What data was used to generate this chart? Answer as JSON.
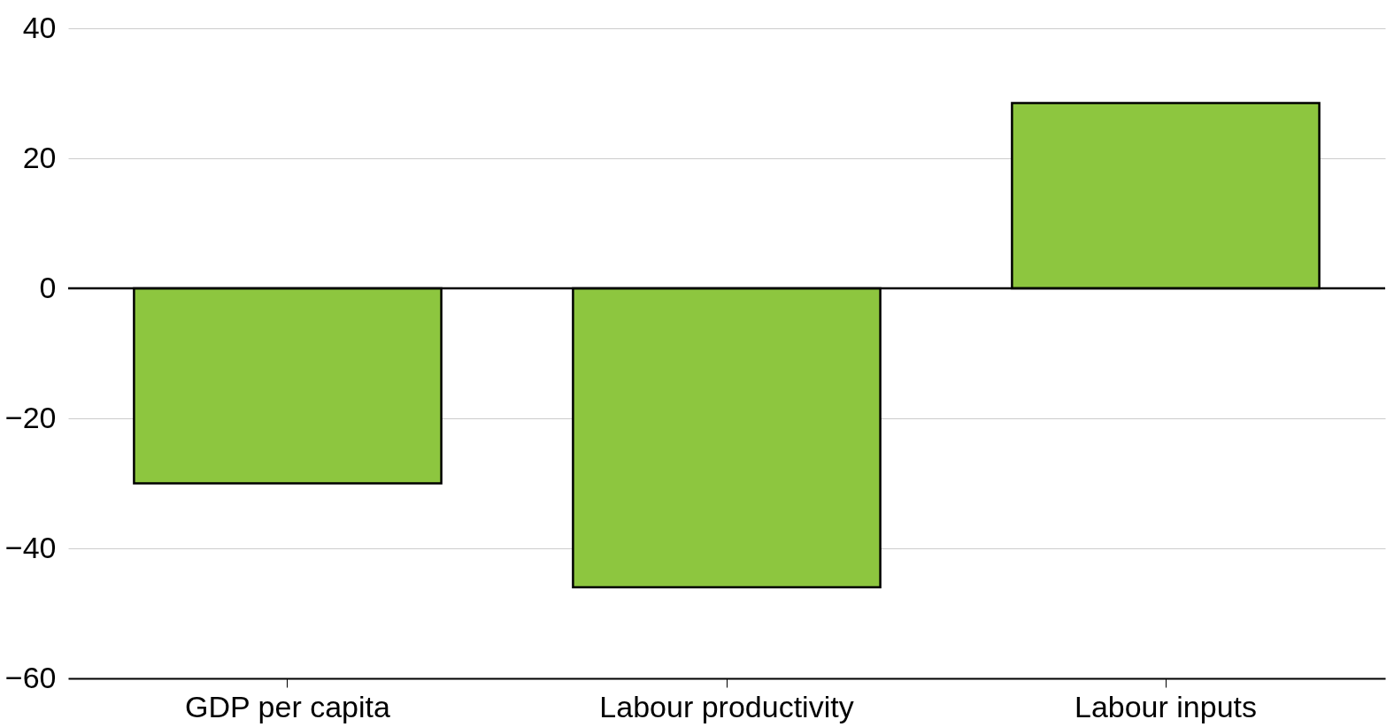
{
  "chart_data": {
    "type": "bar",
    "categories": [
      "GDP per capita",
      "Labour productivity",
      "Labour inputs"
    ],
    "values": [
      -30,
      -46,
      28.5
    ],
    "color": "#8dc63f",
    "ylim": [
      -60,
      40
    ],
    "yticks": [
      -60,
      -40,
      -20,
      0,
      20,
      40
    ],
    "grid": "y",
    "ref_lines": [
      {
        "axis": "y",
        "value": 0,
        "color": "#000000"
      }
    ]
  }
}
